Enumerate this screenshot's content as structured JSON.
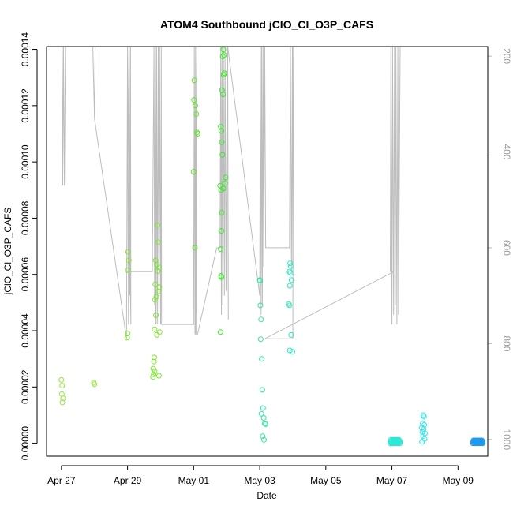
{
  "chart_data": {
    "type": "scatter",
    "title": "ATOM4 Southbound jClO_Cl_O3P_CAFS",
    "xlabel": "Date",
    "ylabel": "jClO_Cl_O3P_CAFS",
    "x_tick_labels": [
      "Apr 27",
      "Apr 29",
      "May 01",
      "May 03",
      "May 05",
      "May 07",
      "May 09"
    ],
    "x_tick_days": [
      0,
      2,
      4,
      6,
      8,
      10,
      12
    ],
    "x_range_days": [
      -0.45,
      12.9
    ],
    "y_tick_labels": [
      "0.00000",
      "0.00002",
      "0.00004",
      "0.00006",
      "0.00008",
      "0.00010",
      "0.00012",
      "0.00014"
    ],
    "y_tick_values": [
      0,
      2e-05,
      4e-05,
      6e-05,
      8e-05,
      0.0001,
      0.00012,
      0.00014
    ],
    "ylim": [
      -4.6e-06,
      0.000141
    ],
    "y2_tick_labels": [
      "200",
      "400",
      "600",
      "800",
      "1000"
    ],
    "y2_tick_values": [
      200,
      400,
      600,
      800,
      1000
    ],
    "y2lim": [
      1035,
      180
    ],
    "grid": false,
    "scatter_points": [
      {
        "x": 0.0,
        "y": 2.25e-05,
        "color": "#98e83c"
      },
      {
        "x": 0.02,
        "y": 2.05e-05,
        "color": "#98e83c"
      },
      {
        "x": 0.01,
        "y": 1.75e-05,
        "color": "#98e83c"
      },
      {
        "x": 0.05,
        "y": 1.6e-05,
        "color": "#98e83c"
      },
      {
        "x": 0.03,
        "y": 1.45e-05,
        "color": "#98e83c"
      },
      {
        "x": 0.98,
        "y": 2.15e-05,
        "color": "#98e83c"
      },
      {
        "x": 1.0,
        "y": 2.1e-05,
        "color": "#98e83c"
      },
      {
        "x": 2.02,
        "y": 6.8e-05,
        "color": "#86ea32"
      },
      {
        "x": 2.04,
        "y": 6.5e-05,
        "color": "#86ea32"
      },
      {
        "x": 2.01,
        "y": 6.15e-05,
        "color": "#86ea32"
      },
      {
        "x": 2.0,
        "y": 3.9e-05,
        "color": "#86ea32"
      },
      {
        "x": 1.99,
        "y": 3.75e-05,
        "color": "#86ea32"
      },
      {
        "x": 2.9,
        "y": 7.75e-05,
        "color": "#7ce82c"
      },
      {
        "x": 2.93,
        "y": 7.15e-05,
        "color": "#7ce82c"
      },
      {
        "x": 2.85,
        "y": 6.5e-05,
        "color": "#7ce82c"
      },
      {
        "x": 2.88,
        "y": 6.35e-05,
        "color": "#7ce82c"
      },
      {
        "x": 2.95,
        "y": 6.25e-05,
        "color": "#7ce82c"
      },
      {
        "x": 2.92,
        "y": 6.12e-05,
        "color": "#7ce82c"
      },
      {
        "x": 2.84,
        "y": 5.65e-05,
        "color": "#7ce82c"
      },
      {
        "x": 2.96,
        "y": 5.55e-05,
        "color": "#7ce82c"
      },
      {
        "x": 2.94,
        "y": 5.4e-05,
        "color": "#7ce82c"
      },
      {
        "x": 2.87,
        "y": 5.2e-05,
        "color": "#7ce82c"
      },
      {
        "x": 2.83,
        "y": 5.1e-05,
        "color": "#7ce82c"
      },
      {
        "x": 2.86,
        "y": 4.55e-05,
        "color": "#7ce82c"
      },
      {
        "x": 2.82,
        "y": 4.05e-05,
        "color": "#7ce82c"
      },
      {
        "x": 2.97,
        "y": 3.95e-05,
        "color": "#7ce82c"
      },
      {
        "x": 2.89,
        "y": 3.85e-05,
        "color": "#7ce82c"
      },
      {
        "x": 2.81,
        "y": 3.05e-05,
        "color": "#7ce82c"
      },
      {
        "x": 2.8,
        "y": 2.9e-05,
        "color": "#7ce82c"
      },
      {
        "x": 2.78,
        "y": 2.65e-05,
        "color": "#7ce82c"
      },
      {
        "x": 2.82,
        "y": 2.55e-05,
        "color": "#7ce82c"
      },
      {
        "x": 2.79,
        "y": 2.45e-05,
        "color": "#7ce82c"
      },
      {
        "x": 2.95,
        "y": 2.4e-05,
        "color": "#7ce82c"
      },
      {
        "x": 2.77,
        "y": 2.35e-05,
        "color": "#7ce82c"
      },
      {
        "x": 4.02,
        "y": 0.000129,
        "color": "#5ee826"
      },
      {
        "x": 4.01,
        "y": 0.000122,
        "color": "#5ee826"
      },
      {
        "x": 4.05,
        "y": 0.00012,
        "color": "#5ee826"
      },
      {
        "x": 4.08,
        "y": 0.000117,
        "color": "#5ee826"
      },
      {
        "x": 4.1,
        "y": 0.0001105,
        "color": "#5ee826"
      },
      {
        "x": 4.12,
        "y": 0.00011,
        "color": "#5ee826"
      },
      {
        "x": 4.0,
        "y": 9.65e-05,
        "color": "#5ee826"
      },
      {
        "x": 4.04,
        "y": 6.95e-05,
        "color": "#5ee826"
      },
      {
        "x": 4.9,
        "y": 0.00014,
        "color": "#3ee82a"
      },
      {
        "x": 4.92,
        "y": 0.000138,
        "color": "#3ee82a"
      },
      {
        "x": 4.88,
        "y": 0.0001375,
        "color": "#3ee82a"
      },
      {
        "x": 4.93,
        "y": 0.0001315,
        "color": "#3ee82a"
      },
      {
        "x": 4.91,
        "y": 0.000131,
        "color": "#3ee82a"
      },
      {
        "x": 4.86,
        "y": 0.0001255,
        "color": "#3ee82a"
      },
      {
        "x": 4.89,
        "y": 0.000124,
        "color": "#3ee82a"
      },
      {
        "x": 4.82,
        "y": 0.0001125,
        "color": "#3ee82a"
      },
      {
        "x": 4.84,
        "y": 0.000111,
        "color": "#3ee82a"
      },
      {
        "x": 4.85,
        "y": 0.000107,
        "color": "#3ee82a"
      },
      {
        "x": 4.87,
        "y": 0.0001025,
        "color": "#3ee82a"
      },
      {
        "x": 4.97,
        "y": 9.45e-05,
        "color": "#3ee82a"
      },
      {
        "x": 4.95,
        "y": 9.25e-05,
        "color": "#3ee82a"
      },
      {
        "x": 4.8,
        "y": 9.15e-05,
        "color": "#3ee82a"
      },
      {
        "x": 4.9,
        "y": 9.05e-05,
        "color": "#3ee82a"
      },
      {
        "x": 4.83,
        "y": 9e-05,
        "color": "#3ee82a"
      },
      {
        "x": 4.85,
        "y": 8.2e-05,
        "color": "#3ee82a"
      },
      {
        "x": 4.84,
        "y": 7.55e-05,
        "color": "#3ee82a"
      },
      {
        "x": 4.82,
        "y": 6.9e-05,
        "color": "#3ee82a"
      },
      {
        "x": 4.83,
        "y": 5.95e-05,
        "color": "#3ee82a"
      },
      {
        "x": 4.84,
        "y": 5.9e-05,
        "color": "#3ee82a"
      },
      {
        "x": 4.81,
        "y": 3.95e-05,
        "color": "#3ee82a"
      },
      {
        "x": 6.0,
        "y": 5.8e-05,
        "color": "#2ee8a4"
      },
      {
        "x": 6.01,
        "y": 5.78e-05,
        "color": "#2ee8a4"
      },
      {
        "x": 6.02,
        "y": 4.9e-05,
        "color": "#2ee8a4"
      },
      {
        "x": 6.04,
        "y": 4.4e-05,
        "color": "#2ee8a4"
      },
      {
        "x": 6.03,
        "y": 3.7e-05,
        "color": "#2ee8a4"
      },
      {
        "x": 6.06,
        "y": 3e-05,
        "color": "#2ee8a4"
      },
      {
        "x": 6.08,
        "y": 1.9e-05,
        "color": "#2ee8a4"
      },
      {
        "x": 6.1,
        "y": 1.25e-05,
        "color": "#2ee8a4"
      },
      {
        "x": 6.05,
        "y": 1.05e-05,
        "color": "#2ee8a4"
      },
      {
        "x": 6.12,
        "y": 9e-06,
        "color": "#2ee8a4"
      },
      {
        "x": 6.15,
        "y": 7e-06,
        "color": "#2ee8a4"
      },
      {
        "x": 6.18,
        "y": 6.8e-06,
        "color": "#2ee8a4"
      },
      {
        "x": 6.09,
        "y": 2.5e-06,
        "color": "#2ee8a4"
      },
      {
        "x": 6.13,
        "y": 1.2e-06,
        "color": "#2ee8a4"
      },
      {
        "x": 6.92,
        "y": 6.4e-05,
        "color": "#2ee8c0"
      },
      {
        "x": 6.94,
        "y": 6.3e-05,
        "color": "#2ee8c0"
      },
      {
        "x": 6.9,
        "y": 6.1e-05,
        "color": "#2ee8c0"
      },
      {
        "x": 6.93,
        "y": 6.05e-05,
        "color": "#2ee8c0"
      },
      {
        "x": 6.96,
        "y": 5.8e-05,
        "color": "#2ee8c0"
      },
      {
        "x": 6.91,
        "y": 5.6e-05,
        "color": "#2ee8c0"
      },
      {
        "x": 6.88,
        "y": 4.95e-05,
        "color": "#2ee8c0"
      },
      {
        "x": 6.9,
        "y": 4.9e-05,
        "color": "#2ee8c0"
      },
      {
        "x": 6.95,
        "y": 3.85e-05,
        "color": "#2ee8c0"
      },
      {
        "x": 6.91,
        "y": 3.3e-05,
        "color": "#2ee8c0"
      },
      {
        "x": 6.99,
        "y": 3.25e-05,
        "color": "#2ee8c0"
      },
      {
        "x": 10.95,
        "y": 1e-05,
        "color": "#2ee8e8"
      },
      {
        "x": 10.97,
        "y": 9.5e-06,
        "color": "#2ee8e8"
      },
      {
        "x": 10.93,
        "y": 7e-06,
        "color": "#2ee8e8"
      },
      {
        "x": 10.98,
        "y": 6.5e-06,
        "color": "#2ee8e8"
      },
      {
        "x": 10.9,
        "y": 5.5e-06,
        "color": "#2ee8e8"
      },
      {
        "x": 10.96,
        "y": 5e-06,
        "color": "#2ee8e8"
      },
      {
        "x": 10.92,
        "y": 4e-06,
        "color": "#2ee8e8"
      },
      {
        "x": 11.0,
        "y": 3.5e-06,
        "color": "#2ee8e8"
      },
      {
        "x": 10.94,
        "y": 2.5e-06,
        "color": "#2ee8e8"
      },
      {
        "x": 10.99,
        "y": 1.5e-06,
        "color": "#2ee8e8"
      },
      {
        "x": 10.91,
        "y": 5e-07,
        "color": "#2ee8e8"
      }
    ],
    "scatter_clusters": [
      {
        "x_from": 9.95,
        "x_to": 10.25,
        "y_from": 0,
        "y_to": 1.2e-06,
        "color": "#2ee8d6",
        "count": 32
      },
      {
        "x_from": 12.45,
        "x_to": 12.75,
        "y_from": 0,
        "y_to": 1e-06,
        "color": "#1f9aee",
        "count": 36
      }
    ],
    "trajectory_x": [
      0.02,
      0.04,
      0.06,
      0.09,
      0.12,
      0.95,
      1.0,
      1.02,
      1.0,
      1.97,
      2.0,
      2.03,
      2.05,
      2.07,
      2.09,
      2.1,
      2.0,
      1.98,
      2.75,
      2.8,
      2.82,
      2.84,
      2.86,
      2.88,
      2.9,
      2.93,
      2.95,
      2.97,
      3.0,
      3.02,
      3.03,
      4.0,
      4.02,
      4.04,
      4.06,
      4.08,
      4.1,
      4.05,
      4.12,
      4.7,
      4.8,
      4.82,
      4.84,
      4.86,
      4.88,
      4.9,
      4.93,
      4.95,
      4.98,
      5.02,
      5.05,
      5.03,
      6.0,
      6.02,
      6.04,
      6.06,
      6.08,
      6.1,
      6.12,
      6.15,
      6.18,
      6.9,
      6.93,
      6.96,
      6.99,
      7.0,
      7.02,
      7.0,
      6.15,
      10.05,
      9.95,
      9.97,
      10.0,
      10.02,
      10.05,
      10.08,
      10.1,
      10.12,
      10.15,
      10.18,
      10.2,
      10.25,
      10.95,
      10.97,
      11.0,
      11.03,
      10.9,
      11.0,
      12.4,
      12.5,
      12.52,
      12.55,
      12.58,
      12.6,
      12.65,
      12.68,
      12.72
    ],
    "trajectory_pressure": [
      180,
      470,
      180,
      470,
      180,
      180,
      330,
      180,
      330,
      790,
      180,
      760,
      180,
      700,
      180,
      760,
      180,
      650,
      650,
      180,
      720,
      180,
      760,
      180,
      760,
      180,
      760,
      180,
      760,
      180,
      760,
      760,
      180,
      780,
      180,
      780,
      180,
      780,
      780,
      600,
      600,
      180,
      740,
      180,
      720,
      180,
      700,
      180,
      690,
      180,
      750,
      180,
      700,
      180,
      740,
      180,
      720,
      180,
      640,
      180,
      600,
      600,
      180,
      650,
      180,
      650,
      180,
      790,
      790,
      650,
      650,
      180,
      760,
      180,
      740,
      180,
      720,
      180,
      760,
      180,
      740,
      180,
      180,
      180,
      180,
      180,
      180,
      180,
      180,
      180,
      180,
      180,
      180,
      180,
      180,
      180,
      180
    ]
  }
}
